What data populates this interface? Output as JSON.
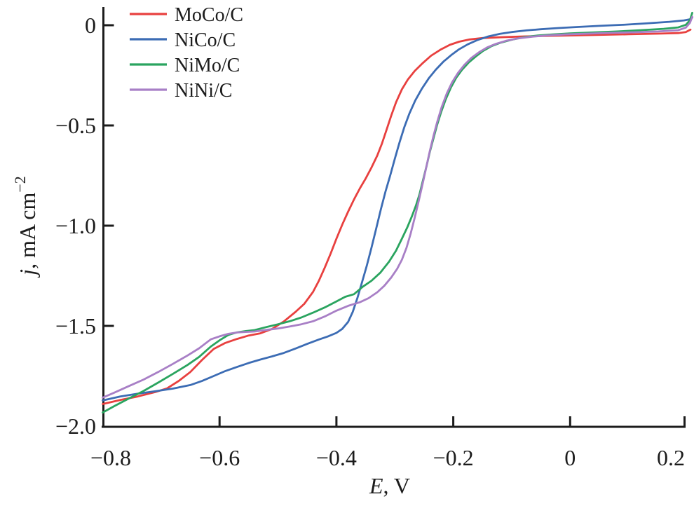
{
  "figure": {
    "background": "#ffffff"
  },
  "chart_data": {
    "type": "line",
    "title": "",
    "xlabel_var": "E",
    "xlabel_rest": ", V",
    "ylabel_var": "j",
    "ylabel_rest": ", mA cm",
    "ylabel_sup": "−2",
    "xlim": [
      -0.8,
      0.2
    ],
    "ylim": [
      -2.0,
      0
    ],
    "grid": false,
    "legend_position": "top-left",
    "axis_color": "#1c1c1c",
    "x_ticks": [
      {
        "v": -0.8,
        "label": "−0.8",
        "line": false
      },
      {
        "v": -0.6,
        "label": "−0.6",
        "line": true
      },
      {
        "v": -0.4,
        "label": "−0.4",
        "line": true
      },
      {
        "v": -0.2,
        "label": "−0.2",
        "line": true
      },
      {
        "v": 0.0,
        "label": "0",
        "line": true
      },
      {
        "v": 0.2,
        "label": "0.2",
        "line": true
      }
    ],
    "y_ticks": [
      {
        "v": 0.0,
        "label": "0",
        "line": true
      },
      {
        "v": -0.5,
        "label": "−0.5",
        "line": true
      },
      {
        "v": -1.0,
        "label": "−1.0",
        "line": true
      },
      {
        "v": -1.5,
        "label": "−1.5",
        "line": true
      },
      {
        "v": -2.0,
        "label": "−2.0",
        "line": false
      }
    ],
    "series": [
      {
        "name": "MoCo/C",
        "color": "#e8403f",
        "points": [
          [
            -0.8,
            -1.89
          ],
          [
            -0.77,
            -1.87
          ],
          [
            -0.74,
            -1.852
          ],
          [
            -0.71,
            -1.83
          ],
          [
            -0.69,
            -1.812
          ],
          [
            -0.67,
            -1.775
          ],
          [
            -0.65,
            -1.73
          ],
          [
            -0.63,
            -1.67
          ],
          [
            -0.61,
            -1.615
          ],
          [
            -0.59,
            -1.585
          ],
          [
            -0.57,
            -1.565
          ],
          [
            -0.55,
            -1.548
          ],
          [
            -0.53,
            -1.537
          ],
          [
            -0.51,
            -1.515
          ],
          [
            -0.49,
            -1.478
          ],
          [
            -0.47,
            -1.43
          ],
          [
            -0.455,
            -1.39
          ],
          [
            -0.44,
            -1.33
          ],
          [
            -0.43,
            -1.275
          ],
          [
            -0.42,
            -1.21
          ],
          [
            -0.41,
            -1.14
          ],
          [
            -0.4,
            -1.065
          ],
          [
            -0.39,
            -0.995
          ],
          [
            -0.38,
            -0.93
          ],
          [
            -0.37,
            -0.87
          ],
          [
            -0.36,
            -0.815
          ],
          [
            -0.35,
            -0.765
          ],
          [
            -0.34,
            -0.71
          ],
          [
            -0.33,
            -0.65
          ],
          [
            -0.322,
            -0.59
          ],
          [
            -0.314,
            -0.52
          ],
          [
            -0.306,
            -0.45
          ],
          [
            -0.298,
            -0.385
          ],
          [
            -0.288,
            -0.32
          ],
          [
            -0.278,
            -0.272
          ],
          [
            -0.266,
            -0.228
          ],
          [
            -0.252,
            -0.188
          ],
          [
            -0.238,
            -0.152
          ],
          [
            -0.222,
            -0.122
          ],
          [
            -0.206,
            -0.098
          ],
          [
            -0.19,
            -0.082
          ],
          [
            -0.172,
            -0.071
          ],
          [
            -0.15,
            -0.064
          ],
          [
            -0.12,
            -0.06
          ],
          [
            -0.08,
            -0.056
          ],
          [
            -0.04,
            -0.053
          ],
          [
            0.0,
            -0.051
          ],
          [
            0.05,
            -0.048
          ],
          [
            0.1,
            -0.045
          ],
          [
            0.15,
            -0.042
          ],
          [
            0.185,
            -0.039
          ],
          [
            0.198,
            -0.034
          ],
          [
            0.206,
            -0.022
          ]
        ]
      },
      {
        "name": "NiCo/C",
        "color": "#3c6cb4",
        "points": [
          [
            -0.8,
            -1.872
          ],
          [
            -0.77,
            -1.852
          ],
          [
            -0.74,
            -1.838
          ],
          [
            -0.71,
            -1.826
          ],
          [
            -0.68,
            -1.813
          ],
          [
            -0.65,
            -1.795
          ],
          [
            -0.63,
            -1.775
          ],
          [
            -0.61,
            -1.75
          ],
          [
            -0.59,
            -1.725
          ],
          [
            -0.57,
            -1.705
          ],
          [
            -0.55,
            -1.685
          ],
          [
            -0.53,
            -1.668
          ],
          [
            -0.51,
            -1.652
          ],
          [
            -0.49,
            -1.635
          ],
          [
            -0.47,
            -1.613
          ],
          [
            -0.45,
            -1.59
          ],
          [
            -0.43,
            -1.568
          ],
          [
            -0.415,
            -1.553
          ],
          [
            -0.4,
            -1.535
          ],
          [
            -0.39,
            -1.515
          ],
          [
            -0.38,
            -1.48
          ],
          [
            -0.372,
            -1.43
          ],
          [
            -0.364,
            -1.36
          ],
          [
            -0.356,
            -1.28
          ],
          [
            -0.348,
            -1.2
          ],
          [
            -0.34,
            -1.11
          ],
          [
            -0.332,
            -1.015
          ],
          [
            -0.324,
            -0.92
          ],
          [
            -0.316,
            -0.83
          ],
          [
            -0.308,
            -0.75
          ],
          [
            -0.3,
            -0.665
          ],
          [
            -0.292,
            -0.585
          ],
          [
            -0.284,
            -0.51
          ],
          [
            -0.275,
            -0.44
          ],
          [
            -0.265,
            -0.375
          ],
          [
            -0.254,
            -0.318
          ],
          [
            -0.242,
            -0.265
          ],
          [
            -0.23,
            -0.222
          ],
          [
            -0.217,
            -0.182
          ],
          [
            -0.204,
            -0.15
          ],
          [
            -0.19,
            -0.12
          ],
          [
            -0.175,
            -0.095
          ],
          [
            -0.158,
            -0.073
          ],
          [
            -0.14,
            -0.056
          ],
          [
            -0.12,
            -0.043
          ],
          [
            -0.1,
            -0.034
          ],
          [
            -0.075,
            -0.026
          ],
          [
            -0.05,
            -0.02
          ],
          [
            -0.02,
            -0.014
          ],
          [
            0.01,
            -0.009
          ],
          [
            0.05,
            -0.003
          ],
          [
            0.09,
            0.002
          ],
          [
            0.13,
            0.009
          ],
          [
            0.17,
            0.017
          ],
          [
            0.195,
            0.024
          ],
          [
            0.206,
            0.03
          ],
          [
            0.209,
            0.038
          ]
        ]
      },
      {
        "name": "NiMo/C",
        "color": "#2aa45f",
        "points": [
          [
            -0.8,
            -1.932
          ],
          [
            -0.78,
            -1.9
          ],
          [
            -0.755,
            -1.862
          ],
          [
            -0.73,
            -1.825
          ],
          [
            -0.705,
            -1.783
          ],
          [
            -0.68,
            -1.74
          ],
          [
            -0.655,
            -1.695
          ],
          [
            -0.635,
            -1.655
          ],
          [
            -0.615,
            -1.603
          ],
          [
            -0.6,
            -1.572
          ],
          [
            -0.585,
            -1.545
          ],
          [
            -0.57,
            -1.532
          ],
          [
            -0.555,
            -1.526
          ],
          [
            -0.54,
            -1.521
          ],
          [
            -0.52,
            -1.506
          ],
          [
            -0.5,
            -1.492
          ],
          [
            -0.48,
            -1.477
          ],
          [
            -0.46,
            -1.458
          ],
          [
            -0.44,
            -1.434
          ],
          [
            -0.42,
            -1.408
          ],
          [
            -0.4,
            -1.378
          ],
          [
            -0.385,
            -1.355
          ],
          [
            -0.37,
            -1.342
          ],
          [
            -0.355,
            -1.305
          ],
          [
            -0.34,
            -1.275
          ],
          [
            -0.325,
            -1.235
          ],
          [
            -0.31,
            -1.18
          ],
          [
            -0.298,
            -1.125
          ],
          [
            -0.288,
            -1.065
          ],
          [
            -0.279,
            -1.01
          ],
          [
            -0.271,
            -0.955
          ],
          [
            -0.264,
            -0.9
          ],
          [
            -0.258,
            -0.845
          ],
          [
            -0.252,
            -0.775
          ],
          [
            -0.246,
            -0.705
          ],
          [
            -0.24,
            -0.63
          ],
          [
            -0.234,
            -0.565
          ],
          [
            -0.228,
            -0.5
          ],
          [
            -0.221,
            -0.435
          ],
          [
            -0.213,
            -0.37
          ],
          [
            -0.204,
            -0.31
          ],
          [
            -0.195,
            -0.262
          ],
          [
            -0.185,
            -0.222
          ],
          [
            -0.174,
            -0.187
          ],
          [
            -0.162,
            -0.157
          ],
          [
            -0.149,
            -0.128
          ],
          [
            -0.135,
            -0.105
          ],
          [
            -0.12,
            -0.088
          ],
          [
            -0.1,
            -0.072
          ],
          [
            -0.08,
            -0.06
          ],
          [
            -0.055,
            -0.051
          ],
          [
            -0.03,
            -0.046
          ],
          [
            0.0,
            -0.041
          ],
          [
            0.04,
            -0.036
          ],
          [
            0.08,
            -0.031
          ],
          [
            0.12,
            -0.025
          ],
          [
            0.16,
            -0.018
          ],
          [
            0.185,
            -0.011
          ],
          [
            0.198,
            0.002
          ],
          [
            0.205,
            0.025
          ],
          [
            0.209,
            0.062
          ]
        ]
      },
      {
        "name": "NiNi/C",
        "color": "#a87fc6",
        "points": [
          [
            -0.8,
            -1.858
          ],
          [
            -0.78,
            -1.833
          ],
          [
            -0.755,
            -1.8
          ],
          [
            -0.73,
            -1.768
          ],
          [
            -0.705,
            -1.73
          ],
          [
            -0.68,
            -1.69
          ],
          [
            -0.655,
            -1.648
          ],
          [
            -0.635,
            -1.612
          ],
          [
            -0.615,
            -1.567
          ],
          [
            -0.6,
            -1.552
          ],
          [
            -0.585,
            -1.54
          ],
          [
            -0.57,
            -1.533
          ],
          [
            -0.555,
            -1.53
          ],
          [
            -0.54,
            -1.528
          ],
          [
            -0.52,
            -1.52
          ],
          [
            -0.5,
            -1.513
          ],
          [
            -0.48,
            -1.503
          ],
          [
            -0.46,
            -1.492
          ],
          [
            -0.44,
            -1.477
          ],
          [
            -0.42,
            -1.453
          ],
          [
            -0.4,
            -1.424
          ],
          [
            -0.38,
            -1.4
          ],
          [
            -0.36,
            -1.382
          ],
          [
            -0.345,
            -1.362
          ],
          [
            -0.33,
            -1.332
          ],
          [
            -0.318,
            -1.3
          ],
          [
            -0.306,
            -1.258
          ],
          [
            -0.296,
            -1.215
          ],
          [
            -0.288,
            -1.17
          ],
          [
            -0.28,
            -1.11
          ],
          [
            -0.273,
            -1.04
          ],
          [
            -0.266,
            -0.96
          ],
          [
            -0.259,
            -0.875
          ],
          [
            -0.252,
            -0.785
          ],
          [
            -0.246,
            -0.705
          ],
          [
            -0.24,
            -0.625
          ],
          [
            -0.234,
            -0.553
          ],
          [
            -0.228,
            -0.487
          ],
          [
            -0.22,
            -0.41
          ],
          [
            -0.211,
            -0.34
          ],
          [
            -0.202,
            -0.285
          ],
          [
            -0.192,
            -0.238
          ],
          [
            -0.181,
            -0.198
          ],
          [
            -0.169,
            -0.163
          ],
          [
            -0.156,
            -0.135
          ],
          [
            -0.142,
            -0.111
          ],
          [
            -0.127,
            -0.093
          ],
          [
            -0.11,
            -0.078
          ],
          [
            -0.09,
            -0.066
          ],
          [
            -0.065,
            -0.057
          ],
          [
            -0.04,
            -0.051
          ],
          [
            -0.01,
            -0.046
          ],
          [
            0.03,
            -0.042
          ],
          [
            0.07,
            -0.038
          ],
          [
            0.11,
            -0.035
          ],
          [
            0.15,
            -0.031
          ],
          [
            0.185,
            -0.025
          ],
          [
            0.198,
            -0.012
          ],
          [
            0.205,
            0.012
          ],
          [
            0.209,
            0.042
          ]
        ]
      }
    ]
  }
}
